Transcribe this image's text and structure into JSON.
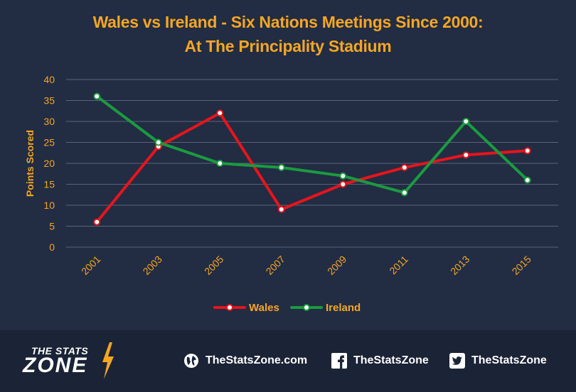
{
  "title_line1": "Wales vs Ireland - Six Nations Meetings Since 2000:",
  "title_line2": "At The Principality Stadium",
  "colors": {
    "background": "#222c43",
    "accent": "#f5a623",
    "wales": "#e8141c",
    "ireland": "#1a9b3f",
    "grid": "#5a6378"
  },
  "chart_data": {
    "type": "line",
    "title": "Wales vs Ireland - Six Nations Meetings Since 2000: At The Principality Stadium",
    "xlabel": "",
    "ylabel": "Points Scored",
    "x": [
      "2001",
      "2003",
      "2005",
      "2007",
      "2009",
      "2011",
      "2013",
      "2015"
    ],
    "ylim": [
      0,
      40
    ],
    "yticks": [
      0,
      5,
      10,
      15,
      20,
      25,
      30,
      35,
      40
    ],
    "grid": true,
    "legend": "bottom",
    "series": [
      {
        "name": "Wales",
        "color": "#e8141c",
        "values": [
          6,
          24,
          32,
          9,
          15,
          19,
          22,
          23
        ]
      },
      {
        "name": "Ireland",
        "color": "#1a9b3f",
        "values": [
          36,
          25,
          20,
          19,
          17,
          13,
          30,
          16
        ]
      }
    ]
  },
  "footer": {
    "brand_top": "THE STATS",
    "brand_bottom": "ZONE",
    "website": "TheStatsZone.com",
    "facebook": "TheStatsZone",
    "twitter": "TheStatsZone",
    "icons": [
      "globe-icon",
      "facebook-icon",
      "twitter-icon"
    ]
  }
}
